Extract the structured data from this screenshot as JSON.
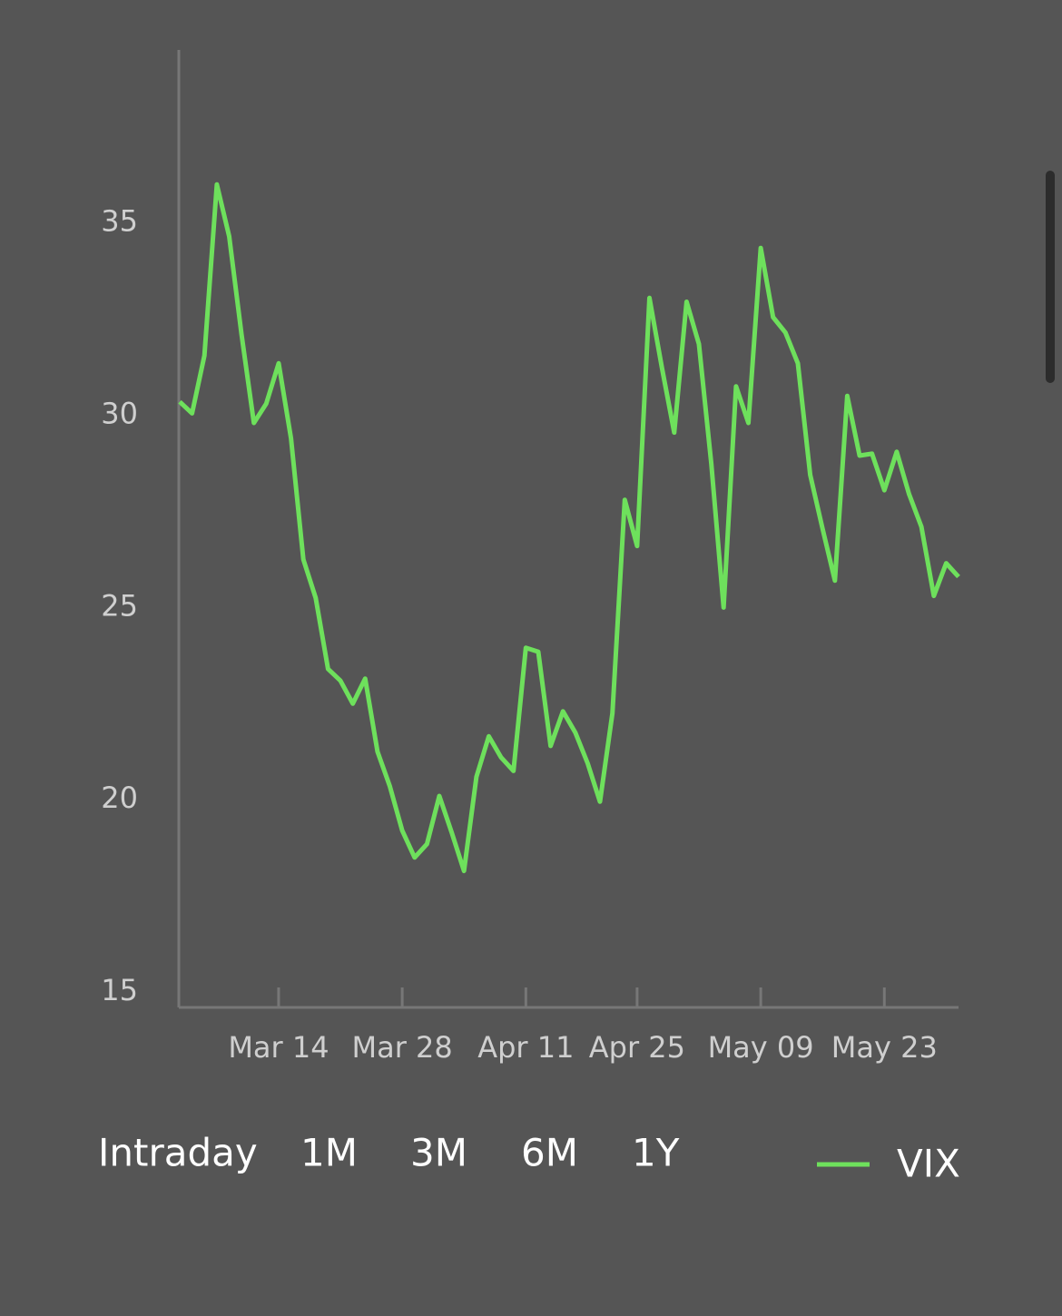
{
  "chart_data": {
    "type": "line",
    "categories": [
      null,
      null,
      null,
      null,
      null,
      null,
      null,
      null,
      "Mar 14",
      null,
      null,
      null,
      null,
      null,
      null,
      null,
      null,
      null,
      "Mar 28",
      null,
      null,
      null,
      null,
      null,
      null,
      null,
      null,
      null,
      "Apr 11",
      null,
      null,
      null,
      null,
      null,
      null,
      null,
      null,
      "Apr 25",
      null,
      null,
      null,
      null,
      null,
      null,
      null,
      null,
      null,
      "May 09",
      null,
      null,
      null,
      null,
      null,
      null,
      null,
      null,
      null,
      "May 23",
      null,
      null,
      null,
      null,
      null,
      null
    ],
    "series": [
      {
        "name": "VIX",
        "color": "#6ee05c",
        "values": [
          30.35,
          30.05,
          31.55,
          36.0,
          34.65,
          32.1,
          29.8,
          30.3,
          31.35,
          29.4,
          26.25,
          25.25,
          23.4,
          23.1,
          22.5,
          23.15,
          21.25,
          20.35,
          19.2,
          18.5,
          18.85,
          20.1,
          19.15,
          18.15,
          20.6,
          21.65,
          21.1,
          20.75,
          23.95,
          23.85,
          21.4,
          22.3,
          21.75,
          20.95,
          19.95,
          22.25,
          27.8,
          26.6,
          33.05,
          31.25,
          29.55,
          32.95,
          31.85,
          28.75,
          25.0,
          30.75,
          29.8,
          34.35,
          32.55,
          32.15,
          31.35,
          28.45,
          27.05,
          25.7,
          30.5,
          28.95,
          29.0,
          28.05,
          29.05,
          27.95,
          27.1,
          25.3,
          26.15,
          25.8
        ]
      }
    ],
    "ylim": [
      14.6,
      39.5
    ],
    "yticks": [
      15,
      20,
      25,
      30,
      35
    ],
    "grid": false
  },
  "range_selector": {
    "options": [
      "Intraday",
      "1M",
      "3M",
      "6M",
      "1Y"
    ],
    "selected_index": 2
  }
}
